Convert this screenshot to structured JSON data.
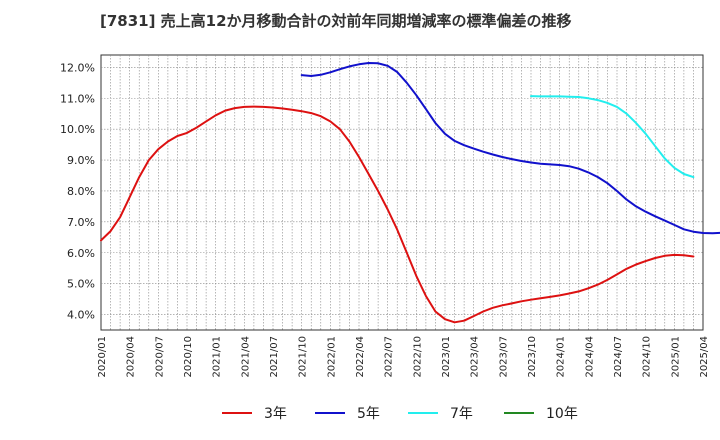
{
  "chart_data": {
    "type": "line",
    "title": "[7831]  売上高12か月移動合計の対前年同期増減率の標準偏差の推移",
    "xlabel": "",
    "ylabel": "",
    "ylim": [
      3.5,
      12.4
    ],
    "yticks": [
      4.0,
      5.0,
      6.0,
      7.0,
      8.0,
      9.0,
      10.0,
      11.0,
      12.0
    ],
    "ytick_labels": [
      "4.0%",
      "5.0%",
      "6.0%",
      "7.0%",
      "8.0%",
      "9.0%",
      "10.0%",
      "11.0%",
      "12.0%"
    ],
    "x_start": "2020/01",
    "x_end": "2025/04",
    "xtick_labels": [
      "2020/01",
      "2020/04",
      "2020/07",
      "2020/10",
      "2021/01",
      "2021/04",
      "2021/07",
      "2021/10",
      "2022/01",
      "2022/04",
      "2022/07",
      "2022/10",
      "2023/01",
      "2023/04",
      "2023/07",
      "2023/10",
      "2024/01",
      "2024/04",
      "2024/07",
      "2024/10",
      "2025/01",
      "2025/04"
    ],
    "grid": true,
    "legend_position": "bottom",
    "series": [
      {
        "name": "3年",
        "color": "#dd1111",
        "start": "2020/01",
        "values": [
          6.4,
          6.7,
          7.15,
          7.8,
          8.45,
          9.0,
          9.35,
          9.6,
          9.78,
          9.88,
          10.05,
          10.25,
          10.45,
          10.6,
          10.68,
          10.72,
          10.73,
          10.72,
          10.7,
          10.67,
          10.63,
          10.58,
          10.52,
          10.42,
          10.25,
          10.0,
          9.6,
          9.1,
          8.55,
          8.0,
          7.4,
          6.75,
          6.0,
          5.25,
          4.6,
          4.1,
          3.85,
          3.75,
          3.8,
          3.95,
          4.1,
          4.22,
          4.3,
          4.36,
          4.43,
          4.48,
          4.53,
          4.57,
          4.62,
          4.68,
          4.75,
          4.85,
          4.97,
          5.12,
          5.3,
          5.48,
          5.62,
          5.73,
          5.83,
          5.9,
          5.93,
          5.92,
          5.88
        ]
      },
      {
        "name": "5年",
        "color": "#1111cc",
        "start": "2021/10",
        "values": [
          11.75,
          11.72,
          11.76,
          11.84,
          11.94,
          12.03,
          12.1,
          12.14,
          12.13,
          12.05,
          11.85,
          11.5,
          11.1,
          10.65,
          10.2,
          9.85,
          9.62,
          9.48,
          9.37,
          9.27,
          9.18,
          9.1,
          9.03,
          8.97,
          8.92,
          8.88,
          8.86,
          8.84,
          8.8,
          8.72,
          8.6,
          8.45,
          8.25,
          8.0,
          7.72,
          7.5,
          7.33,
          7.18,
          7.04,
          6.9,
          6.76,
          6.68,
          6.64,
          6.63,
          6.65
        ]
      },
      {
        "name": "7年",
        "color": "#22eeee",
        "start": "2023/10",
        "values": [
          11.07,
          11.06,
          11.06,
          11.06,
          11.05,
          11.04,
          11.0,
          10.94,
          10.85,
          10.72,
          10.5,
          10.2,
          9.85,
          9.45,
          9.05,
          8.75,
          8.55,
          8.45
        ]
      },
      {
        "name": "10年",
        "color": "#228822",
        "start": "2025/01",
        "values": []
      }
    ]
  }
}
